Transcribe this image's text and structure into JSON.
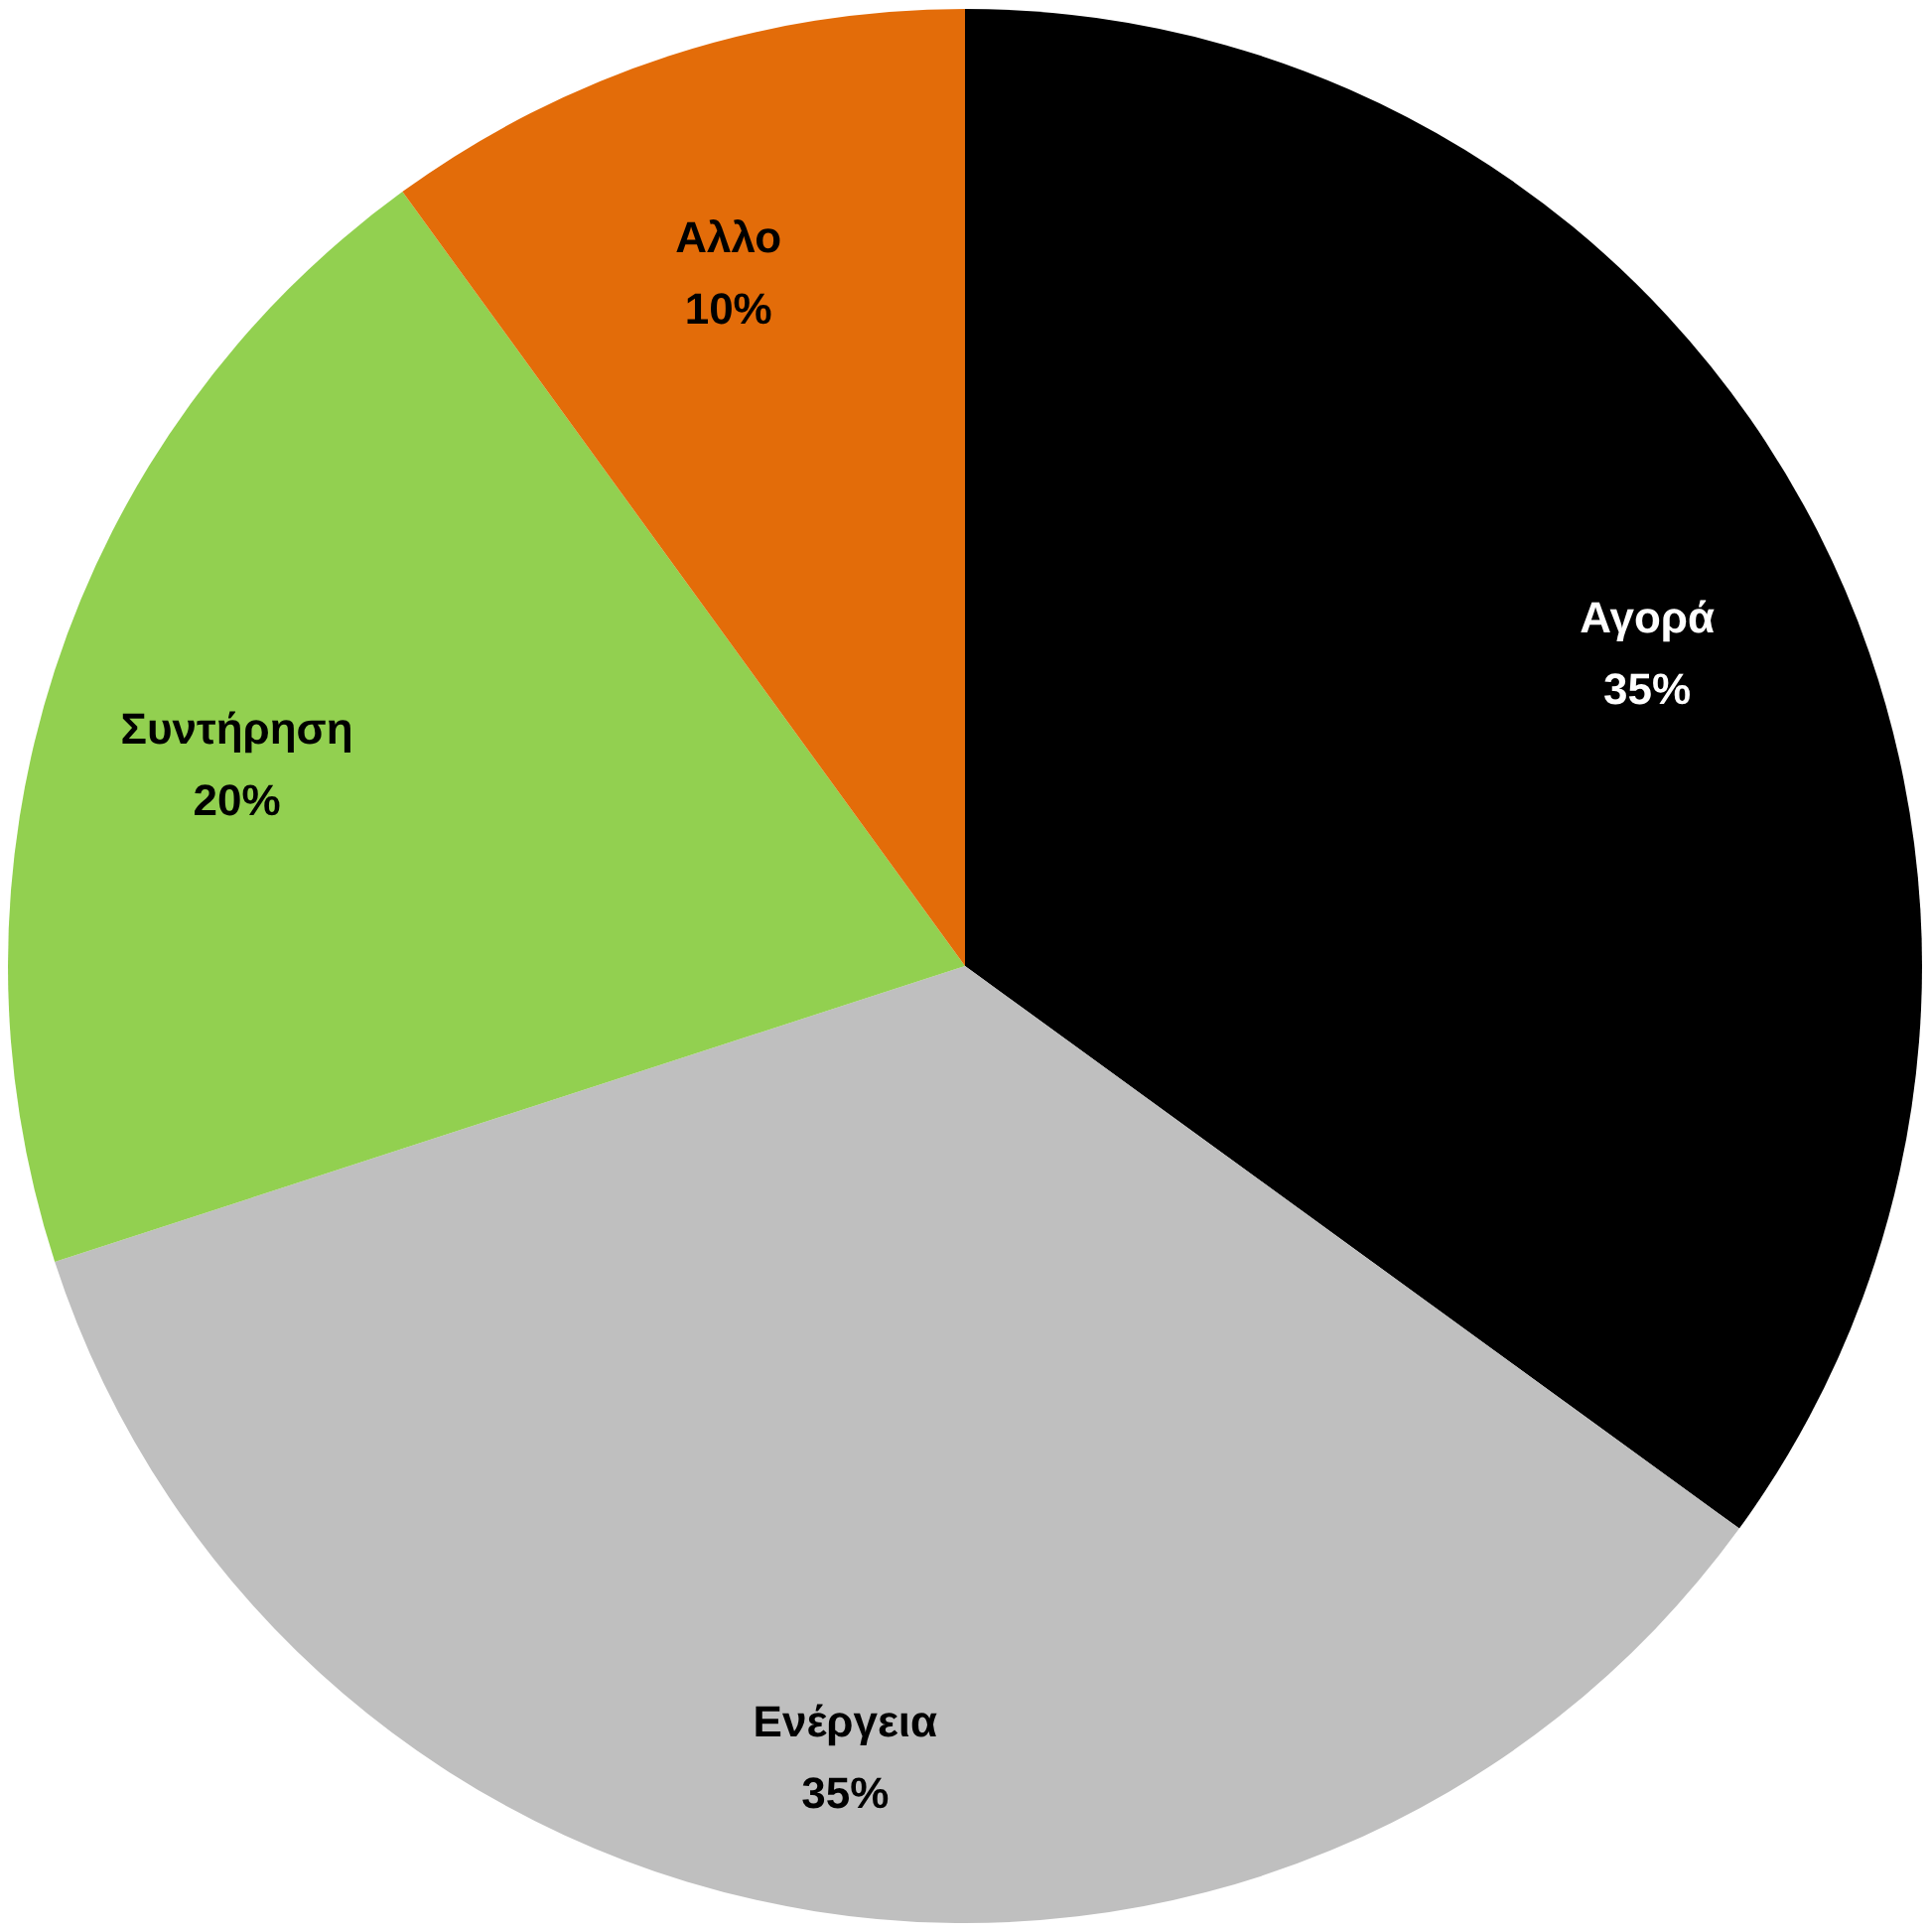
{
  "chart_data": {
    "type": "pie",
    "categories": [
      "Αγορά",
      "Ενέργεια",
      "Συντήρηση",
      "Αλλο"
    ],
    "values": [
      35,
      35,
      20,
      10
    ],
    "value_labels": [
      "35%",
      "35%",
      "20%",
      "10%"
    ],
    "colors": [
      "#000000",
      "#bfbfbf",
      "#92d050",
      "#e36c09"
    ]
  }
}
